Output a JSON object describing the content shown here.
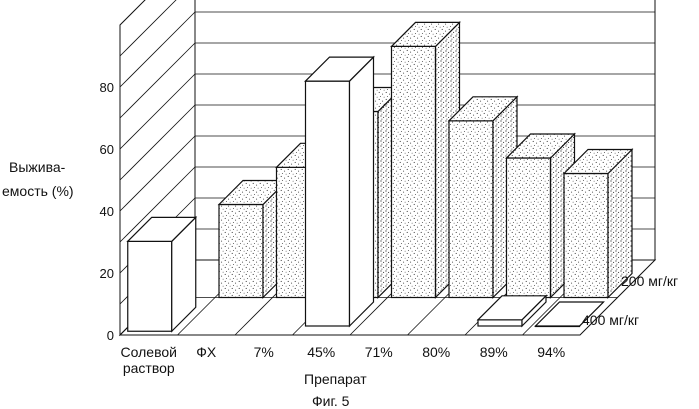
{
  "chart_data": {
    "type": "bar",
    "style": "3d-grouped",
    "ylabel_line1": "Выжива-",
    "ylabel_line2": "емость (%)",
    "xlabel": "Препарат",
    "caption": "Фиг. 5",
    "categories": [
      "Солевой\nраствор",
      "ФХ",
      "7%",
      "45%",
      "71%",
      "80%",
      "89%",
      "94%"
    ],
    "yticks": [
      0,
      20,
      40,
      60,
      80
    ],
    "ylim": [
      0,
      100
    ],
    "grid": true,
    "series": [
      {
        "name": "400 мг/кг",
        "fill": "white",
        "values": [
          null,
          null,
          null,
          79,
          null,
          null,
          2,
          0
        ]
      },
      {
        "name": "200 мг/кг",
        "fill": "stippled",
        "values": [
          null,
          30,
          42,
          60,
          81,
          57,
          45,
          40
        ]
      },
      {
        "name": "",
        "fill": "white",
        "values": [
          29,
          null,
          null,
          null,
          null,
          null,
          null,
          null
        ]
      }
    ]
  }
}
